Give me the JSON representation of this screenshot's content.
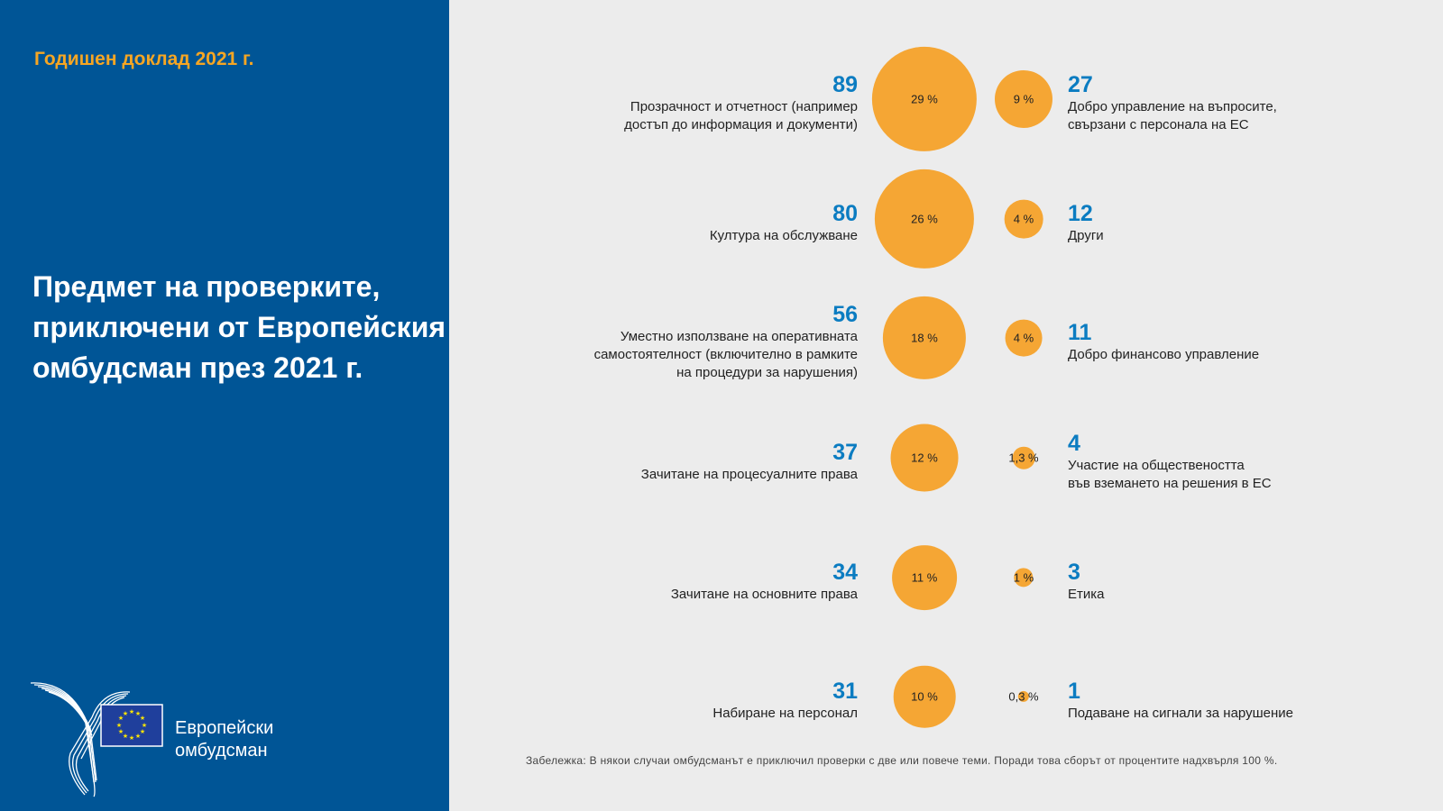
{
  "header": {
    "kicker": "Годишен доклад 2021 г.",
    "title": "Предмет на проверките, приключени от Европейския омбудсман през 2021 г."
  },
  "logo": {
    "line1": "Европейски",
    "line2": "омбудсман"
  },
  "colors": {
    "panel": "#005596",
    "accent": "#f6a623",
    "bubble": "#f5a634",
    "number": "#0b7cc1"
  },
  "left_items": [
    {
      "count": "89",
      "percent": "29 %",
      "label": "Прозрачност и отчетност (например\nдостъп до информация и документи)"
    },
    {
      "count": "80",
      "percent": "26 %",
      "label": "Култура на обслужване"
    },
    {
      "count": "56",
      "percent": "18 %",
      "label": "Уместно използване на оперативната\nсамостоятелност (включително в рамките\nна процедури за нарушения)"
    },
    {
      "count": "37",
      "percent": "12 %",
      "label": "Зачитане на процесуалните права"
    },
    {
      "count": "34",
      "percent": "11 %",
      "label": "Зачитане на основните права"
    },
    {
      "count": "31",
      "percent": "10 %",
      "label": "Набиране на персонал"
    }
  ],
  "right_items": [
    {
      "count": "27",
      "percent": "9 %",
      "label": "Добро управление на въпросите,\nсвързани с персонала на ЕС"
    },
    {
      "count": "12",
      "percent": "4 %",
      "label": "Други"
    },
    {
      "count": "11",
      "percent": "4 %",
      "label": "Добро финансово управление"
    },
    {
      "count": "4",
      "percent": "1,3 %",
      "label": "Участие на обществеността\nвъв вземането на решения в ЕС"
    },
    {
      "count": "3",
      "percent": "1 %",
      "label": "Етика"
    },
    {
      "count": "1",
      "percent": "0,3 %",
      "label": "Подаване на сигнали за нарушение"
    }
  ],
  "note": "Забележка: В някои случаи омбудсманът е приключил проверки с две или повече теми. Поради това сборът от процентите надхвърля 100 %."
}
